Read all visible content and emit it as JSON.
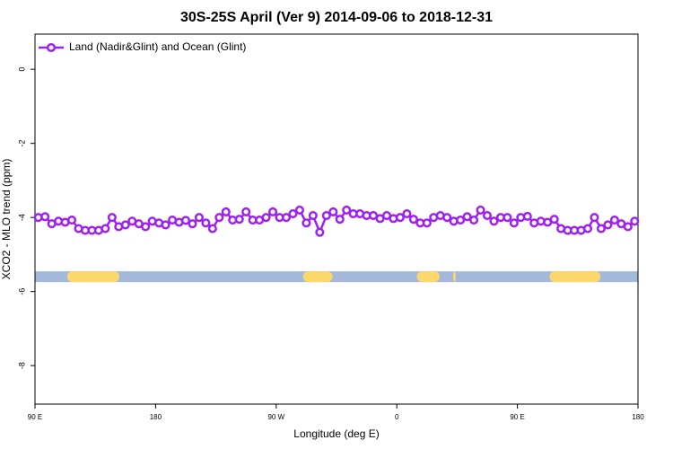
{
  "chart_data": {
    "type": "line",
    "title": "30S-25S April (Ver 9)   2014-09-06 to 2018-12-31",
    "xlabel": "Longitude (deg E)",
    "ylabel": "XCO2 - MLO trend (ppm)",
    "xlim": [
      90,
      540
    ],
    "ylim": [
      -9.04,
      0.95
    ],
    "xticks": [
      {
        "value": 90,
        "label": "90 E"
      },
      180,
      {
        "value": 270,
        "label": "90 W"
      },
      {
        "value": 360,
        "label": "0"
      },
      {
        "value": 450,
        "label": "90 E"
      },
      {
        "value": 540,
        "label": "180"
      }
    ],
    "yticks": [
      0,
      -2,
      -4,
      -6,
      -8
    ],
    "legend": "upper left",
    "x": [
      92.5,
      97.5,
      102.5,
      107.5,
      112.5,
      117.5,
      122.5,
      127.5,
      132.5,
      137.5,
      142.5,
      147.5,
      152.5,
      157.5,
      162.5,
      167.5,
      172.5,
      177.5,
      182.5,
      187.5,
      192.5,
      197.5,
      202.5,
      207.5,
      212.5,
      217.5,
      222.5,
      227.5,
      232.5,
      237.5,
      242.5,
      247.5,
      252.5,
      257.5,
      262.5,
      267.5,
      272.5,
      277.5,
      282.5,
      287.5,
      292.5,
      297.5,
      302.5,
      307.5,
      312.5,
      317.5,
      322.5,
      327.5,
      332.5,
      337.5,
      342.5,
      347.5,
      352.5,
      357.5,
      362.5,
      367.5,
      372.5,
      377.5,
      382.5,
      387.5,
      392.5,
      397.5,
      402.5,
      407.5,
      412.5,
      417.5,
      422.5,
      427.5,
      432.5,
      437.5,
      442.5,
      447.5,
      452.5,
      457.5,
      462.5,
      467.5,
      472.5,
      477.5,
      482.5,
      487.5,
      492.5,
      497.5,
      502.5,
      507.5,
      512.5,
      517.5,
      522.5,
      527.5,
      532.5,
      537.5
    ],
    "series": [
      {
        "name": "Land (Nadir&Glint) and Ocean (Glint)",
        "color": "#a020f0",
        "values": [
          -4.0,
          -3.98,
          -4.17,
          -4.1,
          -4.13,
          -4.07,
          -4.3,
          -4.35,
          -4.35,
          -4.35,
          -4.3,
          -4.0,
          -4.25,
          -4.2,
          -4.1,
          -4.17,
          -4.25,
          -4.1,
          -4.15,
          -4.2,
          -4.07,
          -4.13,
          -4.08,
          -4.17,
          -4.0,
          -4.15,
          -4.3,
          -4.0,
          -3.85,
          -4.07,
          -4.05,
          -3.85,
          -4.07,
          -4.07,
          -4.0,
          -3.85,
          -4.0,
          -4.0,
          -3.9,
          -3.8,
          -4.15,
          -3.95,
          -4.4,
          -3.95,
          -3.85,
          -4.05,
          -3.8,
          -3.9,
          -3.9,
          -3.95,
          -3.95,
          -4.03,
          -3.95,
          -4.03,
          -4.0,
          -3.9,
          -4.05,
          -4.15,
          -4.15,
          -4.0,
          -3.95,
          -4.0,
          -4.1,
          -4.07,
          -3.98,
          -4.07,
          -3.8,
          -3.95,
          -4.1,
          -4.0,
          -4.0,
          -4.15,
          -4.0,
          -3.97,
          -4.15,
          -4.1,
          -4.13,
          -4.05,
          -4.3,
          -4.35,
          -4.35,
          -4.35,
          -4.3,
          -4.0,
          -4.3,
          -4.2,
          -4.07,
          -4.17,
          -4.25,
          -4.1
        ]
      }
    ],
    "surface_band": {
      "y": -5.6,
      "color": "#a4b9d9",
      "segments": [
        {
          "start": 114,
          "end": 153,
          "color": "#fcd76c"
        },
        {
          "start": 290,
          "end": 312,
          "color": "#fcd76c"
        },
        {
          "start": 375,
          "end": 392,
          "color": "#fcd76c"
        },
        {
          "start": 402,
          "end": 404,
          "color": "#fcd76c"
        },
        {
          "start": 474,
          "end": 512,
          "color": "#fcd76c"
        }
      ]
    }
  }
}
